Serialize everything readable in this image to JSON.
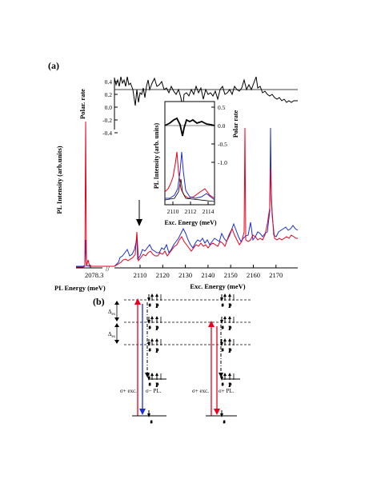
{
  "panel_a": {
    "label": "(a)",
    "ylabel_pl": "PL Intensity (arb.units)",
    "ylabel_polar": "Polar. rate",
    "xlabel_exc": "Exc. Energy (meV)",
    "xlabel_pl": "PL Energy (meV)",
    "pl_tick": "2078.3",
    "exc_ticks": [
      "2110",
      "2120",
      "2130",
      "2140",
      "2150",
      "2160",
      "2170"
    ],
    "polar_ticks": [
      "0.4",
      "0.2",
      "0.0",
      "-0.2",
      "-0.4"
    ],
    "inset": {
      "ylabel_pl": "PL Intensity (arb. units)",
      "ylabel_polar": "Polar rate",
      "xlabel": "Exc. Energy (meV)",
      "xticks": [
        "2110",
        "2112",
        "2114"
      ],
      "polar_ticks": [
        "0.5",
        "0.0",
        "-0.5",
        "-1.0"
      ]
    }
  },
  "panel_b": {
    "label": "(b)",
    "delta1": "Δₓ",
    "delta_label": "Δ",
    "delta_sub": "ex",
    "left_exc": "σ+ exc.",
    "left_pl": "σ− PL.",
    "right_exc": "σ+ exc.",
    "right_pl": "σ+ PL.",
    "s": "s",
    "p": "p"
  },
  "colors": {
    "red": "#e8001c",
    "blue": "#1a2fd6",
    "black": "#000000"
  }
}
